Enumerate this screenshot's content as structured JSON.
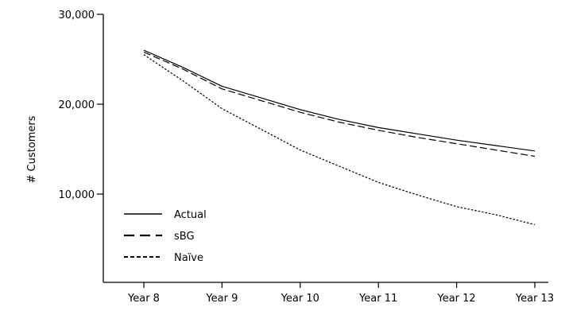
{
  "chart_data": {
    "type": "line",
    "title": "",
    "xlabel": "",
    "ylabel": "# Customers",
    "categories": [
      "Year 8",
      "Year 9",
      "Year 10",
      "Year 11",
      "Year 12",
      "Year 13"
    ],
    "yticks": [
      "10,000",
      "20,000",
      "30,000"
    ],
    "ytick_values": [
      10000,
      20000,
      30000
    ],
    "ylim": [
      0,
      30000
    ],
    "grid": false,
    "legend_position": "bottom-left",
    "series": [
      {
        "name": "Actual",
        "style": "solid",
        "color": "#000000",
        "x": [
          8,
          8.5,
          9,
          9.5,
          10,
          10.5,
          11,
          11.5,
          12,
          12.5,
          13
        ],
        "values": [
          26000,
          24100,
          22000,
          20700,
          19400,
          18300,
          17400,
          16700,
          16000,
          15400,
          14800
        ]
      },
      {
        "name": "sBG",
        "style": "dashed",
        "color": "#000000",
        "x": [
          8,
          8.5,
          9,
          9.5,
          10,
          10.5,
          11,
          11.5,
          12,
          12.5,
          13
        ],
        "values": [
          25800,
          23900,
          21700,
          20400,
          19100,
          18000,
          17100,
          16300,
          15600,
          14900,
          14200
        ]
      },
      {
        "name": "Naïve",
        "style": "dotted",
        "color": "#000000",
        "x": [
          8,
          8.5,
          9,
          9.5,
          10,
          10.5,
          11,
          11.5,
          12,
          12.5,
          13
        ],
        "values": [
          25500,
          22600,
          19500,
          17200,
          14900,
          13100,
          11300,
          9900,
          8600,
          7700,
          6600
        ]
      }
    ]
  }
}
